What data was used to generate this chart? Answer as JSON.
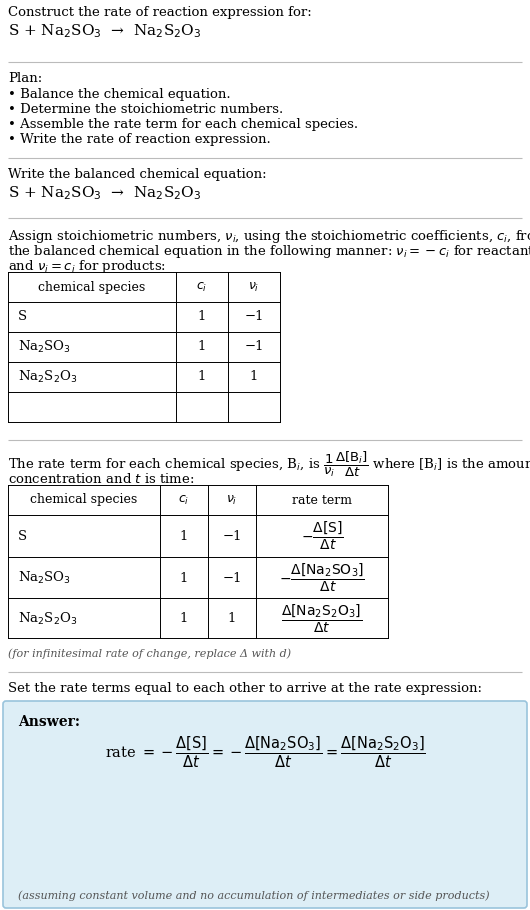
{
  "bg_color": "#ffffff",
  "text_color": "#000000",
  "title_line1": "Construct the rate of reaction expression for:",
  "title_line2": "S + Na$_2$SO$_3$  →  Na$_2$S$_2$O$_3$",
  "plan_header": "Plan:",
  "plan_items": [
    "• Balance the chemical equation.",
    "• Determine the stoichiometric numbers.",
    "• Assemble the rate term for each chemical species.",
    "• Write the rate of reaction expression."
  ],
  "section2_header": "Write the balanced chemical equation:",
  "section2_eq": "S + Na$_2$SO$_3$  →  Na$_2$S$_2$O$_3$",
  "section3_line1": "Assign stoichiometric numbers, $\\nu_i$, using the stoichiometric coefficients, $c_i$, from",
  "section3_line2": "the balanced chemical equation in the following manner: $\\nu_i = -c_i$ for reactants",
  "section3_line3": "and $\\nu_i = c_i$ for products:",
  "table1_headers": [
    "chemical species",
    "$c_i$",
    "$\\nu_i$"
  ],
  "table1_rows": [
    [
      "S",
      "1",
      "−1"
    ],
    [
      "Na$_2$SO$_3$",
      "1",
      "−1"
    ],
    [
      "Na$_2$S$_2$O$_3$",
      "1",
      "1"
    ]
  ],
  "section4_line1": "The rate term for each chemical species, B$_i$, is $\\dfrac{1}{\\nu_i}\\dfrac{\\Delta[\\mathrm{B}_i]}{\\Delta t}$ where [B$_i$] is the amount",
  "section4_line2": "concentration and $t$ is time:",
  "table2_headers": [
    "chemical species",
    "$c_i$",
    "$\\nu_i$",
    "rate term"
  ],
  "table2_rows": [
    [
      "S",
      "1",
      "−1",
      "$-\\dfrac{\\Delta[\\mathrm{S}]}{\\Delta t}$"
    ],
    [
      "Na$_2$SO$_3$",
      "1",
      "−1",
      "$-\\dfrac{\\Delta[\\mathrm{Na_2SO_3}]}{\\Delta t}$"
    ],
    [
      "Na$_2$S$_2$O$_3$",
      "1",
      "1",
      "$\\dfrac{\\Delta[\\mathrm{Na_2S_2O_3}]}{\\Delta t}$"
    ]
  ],
  "infinitesimal_note": "(for infinitesimal rate of change, replace Δ with d)",
  "section5_header": "Set the rate terms equal to each other to arrive at the rate expression:",
  "answer_label": "Answer:",
  "answer_eq": "rate $= -\\dfrac{\\Delta[\\mathrm{S}]}{\\Delta t} = -\\dfrac{\\Delta[\\mathrm{Na_2SO_3}]}{\\Delta t} = \\dfrac{\\Delta[\\mathrm{Na_2S_2O_3}]}{\\Delta t}$",
  "answer_note": "(assuming constant volume and no accumulation of intermediates or side products)",
  "answer_box_color": "#ddeef6",
  "answer_box_border": "#99c4dc",
  "divider_color": "#bbbbbb"
}
